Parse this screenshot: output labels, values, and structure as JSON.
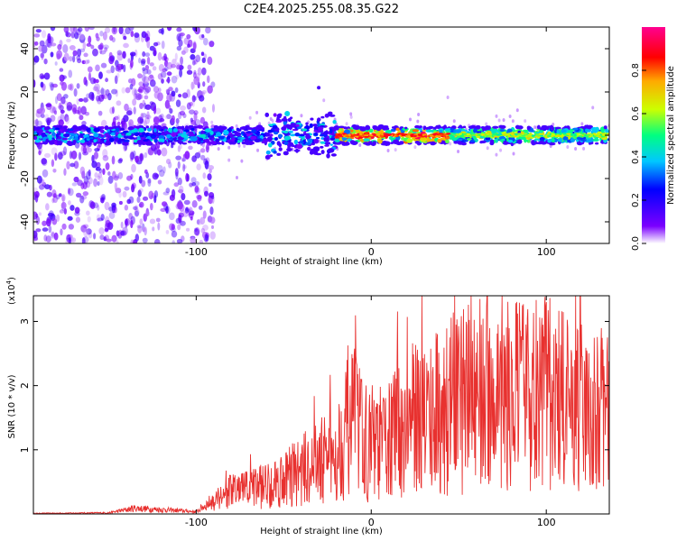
{
  "title": "C2E4.2025.255.08.35.G22",
  "chart_data": [
    {
      "type": "heatmap",
      "name": "spectrogram",
      "xlabel": "Height of straight line (km)",
      "ylabel": "Frequency (Hz)",
      "xlim": [
        -193,
        136
      ],
      "ylim": [
        -50,
        50
      ],
      "xticks": [
        -100,
        0,
        100
      ],
      "yticks": [
        -40,
        -20,
        0,
        20,
        40
      ],
      "colorbar": {
        "label": "Normalized spectral amplitude",
        "ticks": [
          0.0,
          0.2,
          0.4,
          0.6,
          0.8
        ],
        "range": [
          0,
          1
        ],
        "colors": [
          "#ffffff",
          "#7b00ff",
          "#0000ff",
          "#00c8ff",
          "#00ff80",
          "#ccff00",
          "#ffaa00",
          "#ff0000",
          "#ff0090"
        ]
      },
      "features": {
        "band_center_hz": 0,
        "band_half_width_hz": 4,
        "scatter_region_km": [
          -193,
          -100
        ],
        "strong_signal_start_km": -20
      }
    },
    {
      "type": "line",
      "name": "snr",
      "xlabel": "Height of straight line (km)",
      "ylabel": "SNR (10 * v/v)",
      "scale_label": "(x10",
      "scale_exponent": "4",
      "xlim": [
        -193,
        136
      ],
      "ylim": [
        0,
        3.4
      ],
      "xticks": [
        -100,
        0,
        100
      ],
      "yticks": [
        1,
        2,
        3
      ],
      "color": "#e8312f",
      "envelope": [
        {
          "x": -193,
          "y": 0.01
        },
        {
          "x": -150,
          "y": 0.02
        },
        {
          "x": -135,
          "y": 0.1
        },
        {
          "x": -100,
          "y": 0.04
        },
        {
          "x": -85,
          "y": 0.35
        },
        {
          "x": -60,
          "y": 0.5
        },
        {
          "x": -40,
          "y": 0.75
        },
        {
          "x": -20,
          "y": 1.05
        },
        {
          "x": -12,
          "y": 1.7
        },
        {
          "x": 0,
          "y": 1.1
        },
        {
          "x": 10,
          "y": 1.3
        },
        {
          "x": 20,
          "y": 1.6
        },
        {
          "x": 40,
          "y": 1.8
        },
        {
          "x": 60,
          "y": 2.1
        },
        {
          "x": 80,
          "y": 2.0
        },
        {
          "x": 100,
          "y": 2.1
        },
        {
          "x": 120,
          "y": 1.7
        },
        {
          "x": 136,
          "y": 1.8
        }
      ],
      "peaks": [
        {
          "x": 62,
          "y": 3.35
        },
        {
          "x": 100,
          "y": 3.3
        },
        {
          "x": 45,
          "y": 2.75
        },
        {
          "x": 85,
          "y": 2.85
        },
        {
          "x": 135,
          "y": 2.75
        },
        {
          "x": 120,
          "y": 2.95
        },
        {
          "x": 27,
          "y": 2.4
        },
        {
          "x": -12,
          "y": 2.0
        },
        {
          "x": -45,
          "y": 1.1
        }
      ]
    }
  ]
}
